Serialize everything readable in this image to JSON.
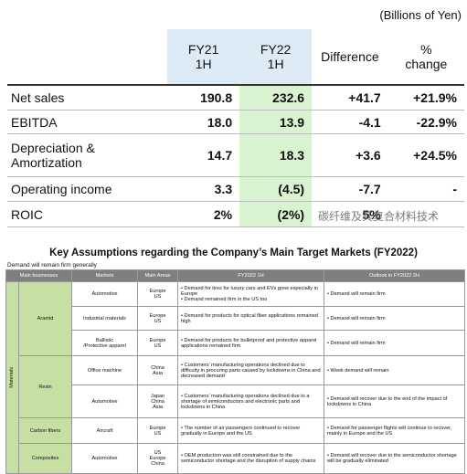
{
  "unit_note": "(Billions of Yen)",
  "financials": {
    "columns": [
      "FY21\n1H",
      "FY22\n1H",
      "Difference",
      "%\nchange"
    ],
    "rows": [
      {
        "label": "Net sales",
        "values": [
          "190.8",
          "232.6",
          "+41.7",
          "+21.9%"
        ]
      },
      {
        "label": "EBITDA",
        "values": [
          "18.0",
          "13.9",
          "-4.1",
          "-22.9%"
        ]
      },
      {
        "label": "Depreciation &\nAmortization",
        "values": [
          "14.7",
          "18.3",
          "+3.6",
          "+24.5%"
        ]
      },
      {
        "label": "Operating income",
        "values": [
          "3.3",
          "(4.5)",
          "-7.7",
          "-"
        ]
      },
      {
        "label": "ROIC",
        "values": [
          "2%",
          "(2%)",
          "5%",
          ""
        ]
      }
    ]
  },
  "watermark": "碳纤维及其复合材料技术",
  "assumptions": {
    "title": "Key Assumptions regarding the Company’s Main Target Markets (FY2022)",
    "note": "Demand will remain firm generally",
    "headers": [
      "Main businesses",
      "Markets",
      "Main Areas",
      "FY2022 1H",
      "Outlook in FY2022 2H"
    ],
    "group": "Materials",
    "businesses": [
      {
        "name": "Aramid",
        "rows": [
          {
            "market": "Automotive",
            "areas": "Europe\nUS",
            "h1": [
              "• Demand for tires for luxury cars and EVs grew especially in Europe",
              "• Demand remained firm in the US too"
            ],
            "h2": [
              "• Demand will remain firm"
            ]
          },
          {
            "market": "Industrial materials",
            "areas": "Europe\nUS",
            "h1": [
              "• Demand for products for optical fiber applications remained high"
            ],
            "h2": [
              "• Demand will remain firm"
            ]
          },
          {
            "market": "Ballistic\n/Protective apparel",
            "areas": "Europe\nUS",
            "h1": [
              "• Demand for products for bulletproof and protective apparel applications remained firm"
            ],
            "h2": [
              "• Demand will remain firm"
            ]
          }
        ]
      },
      {
        "name": "Resin",
        "rows": [
          {
            "market": "Office machine",
            "areas": "China\nAsia",
            "h1": [
              "• Customers’ manufacturing operations declined due to difficulty in procuring parts caused by lockdowns in China and decreased demand"
            ],
            "h2": [
              "• Week demand will remain"
            ]
          },
          {
            "market": "Automotive",
            "areas": "Japan\nChina\nAsia",
            "h1": [
              "• Customers’ manufacturing operations declined due to a shortage of semiconductors and electronic parts and lockdowns in China"
            ],
            "h2": [
              "• Demand will recover due to the end of the impact of lockdowns in China"
            ]
          }
        ]
      },
      {
        "name": "Carbon fibers",
        "rows": [
          {
            "market": "Aircraft",
            "areas": "Europe\nUS",
            "h1": [
              "• The number of air passengers continued to recover gradually in Europe and the US"
            ],
            "h2": [
              "• Demand for passenger flights will continue to recover, mainly in Europe and the US"
            ]
          }
        ]
      },
      {
        "name": "Composites",
        "rows": [
          {
            "market": "Automotive",
            "areas": "US\nEurope\nChina",
            "h1": [
              "• OEM production was still constrained due to the semiconductor shortage and the disruption of supply chains"
            ],
            "h2": [
              "• Demand will recover due to the semiconductor shortage will be gradually eliminated"
            ]
          }
        ]
      }
    ]
  }
}
